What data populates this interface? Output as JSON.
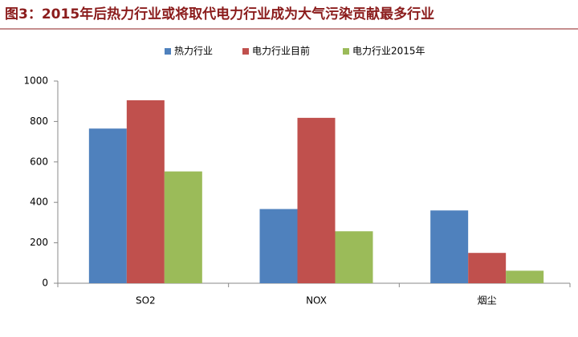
{
  "chart_data": {
    "type": "bar",
    "title": "图3：2015年后热力行业或将取代电力行业成为大气污染贡献最多行业",
    "categories": [
      "SO2",
      "NOX",
      "烟尘"
    ],
    "series": [
      {
        "name": "热力行业",
        "color": "#4f81bd",
        "values": [
          765,
          367,
          360
        ]
      },
      {
        "name": "电力行业目前",
        "color": "#c0504d",
        "values": [
          905,
          818,
          150
        ]
      },
      {
        "name": "电力行业2015年",
        "color": "#9bbb59",
        "values": [
          553,
          257,
          62
        ]
      }
    ],
    "ylim": [
      0,
      1000
    ],
    "yticks": [
      0,
      200,
      400,
      600,
      800,
      1000
    ],
    "grid": false,
    "legend": "top"
  }
}
